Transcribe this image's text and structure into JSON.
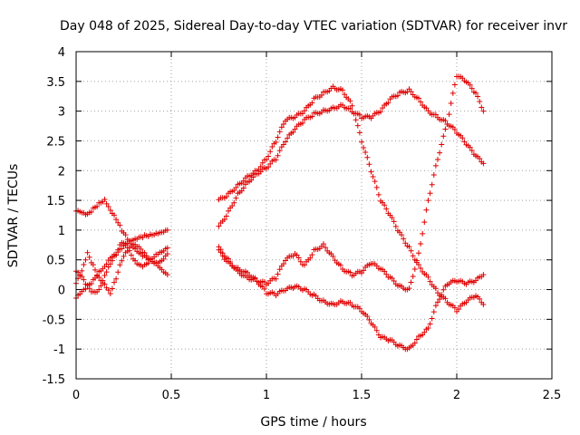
{
  "chart_data": {
    "type": "scatter",
    "title": "Day 048 of 2025, Sidereal Day-to-day VTEC variation (SDTVAR) for receiver invr",
    "xlabel": "GPS time / hours",
    "ylabel": "SDTVAR / TECUs",
    "xlim": [
      0,
      2.5
    ],
    "ylim": [
      -1.5,
      4
    ],
    "xticks": [
      0,
      0.5,
      1,
      1.5,
      2,
      2.5
    ],
    "xtick_labels": [
      "0",
      "0.5",
      "1",
      "1.5",
      "2",
      "2.5"
    ],
    "yticks": [
      -1.5,
      -1,
      -0.5,
      0,
      0.5,
      1,
      1.5,
      2,
      2.5,
      3,
      3.5,
      4
    ],
    "ytick_labels": [
      "-1.5",
      "-1",
      "-0.5",
      "0",
      "0.5",
      "1",
      "1.5",
      "2",
      "2.5",
      "3",
      "3.5",
      "4"
    ],
    "grid": true,
    "marker": "+",
    "color": "#e00000",
    "series": [
      {
        "name": "s1",
        "x": [
          0,
          0.03,
          0.06,
          0.09,
          0.12,
          0.15,
          0.18,
          0.21,
          0.24,
          0.27,
          0.3,
          0.33,
          0.36,
          0.39,
          0.42,
          0.45,
          0.48
        ],
        "y": [
          1.32,
          1.28,
          1.25,
          1.35,
          1.45,
          1.52,
          1.35,
          1.2,
          1.0,
          0.85,
          0.7,
          0.6,
          0.55,
          0.5,
          0.45,
          0.35,
          0.25
        ]
      },
      {
        "name": "s2",
        "x": [
          0,
          0.03,
          0.06,
          0.09,
          0.12,
          0.15,
          0.18,
          0.21,
          0.24,
          0.27,
          0.3,
          0.33,
          0.36,
          0.39,
          0.42,
          0.45,
          0.48
        ],
        "y": [
          0.1,
          0.3,
          0.6,
          0.4,
          0.2,
          0.1,
          -0.05,
          0.2,
          0.5,
          0.65,
          0.75,
          0.7,
          0.6,
          0.5,
          0.45,
          0.5,
          0.6
        ]
      },
      {
        "name": "s3",
        "x": [
          0,
          0.03,
          0.06,
          0.09,
          0.12,
          0.15,
          0.18,
          0.21,
          0.24,
          0.27,
          0.3,
          0.33,
          0.36,
          0.39,
          0.42,
          0.45,
          0.48
        ],
        "y": [
          -0.15,
          -0.05,
          0.05,
          0.15,
          0.3,
          0.4,
          0.55,
          0.6,
          0.7,
          0.78,
          0.82,
          0.86,
          0.9,
          0.92,
          0.95,
          0.98,
          1.0
        ]
      },
      {
        "name": "s4",
        "x": [
          0,
          0.03,
          0.06,
          0.09,
          0.12,
          0.15,
          0.18,
          0.21,
          0.24,
          0.27,
          0.3,
          0.33,
          0.36,
          0.39,
          0.42,
          0.45,
          0.48
        ],
        "y": [
          0.3,
          0.2,
          0.05,
          -0.05,
          0.0,
          0.25,
          0.45,
          0.6,
          0.8,
          0.7,
          0.5,
          0.4,
          0.4,
          0.5,
          0.6,
          0.65,
          0.7
        ]
      },
      {
        "name": "s5",
        "x": [
          0.75,
          0.8,
          0.85,
          0.9,
          0.95,
          1.0,
          1.05,
          1.1,
          1.15,
          1.2,
          1.25,
          1.3,
          1.35,
          1.4,
          1.45,
          1.5,
          1.55,
          1.6,
          1.65,
          1.7,
          1.75,
          1.8,
          1.85,
          1.9,
          1.95,
          2.0,
          2.05,
          2.1,
          2.14
        ],
        "y": [
          1.5,
          1.6,
          1.75,
          1.9,
          2.0,
          2.2,
          2.5,
          2.85,
          2.9,
          3.0,
          3.2,
          3.3,
          3.4,
          3.35,
          3.1,
          2.5,
          2.0,
          1.5,
          1.25,
          0.95,
          0.7,
          0.4,
          0.2,
          -0.05,
          -0.2,
          -0.35,
          -0.2,
          -0.1,
          -0.25
        ]
      },
      {
        "name": "s6",
        "x": [
          0.75,
          0.8,
          0.85,
          0.9,
          0.95,
          1.0,
          1.05,
          1.1,
          1.15,
          1.2,
          1.25,
          1.3,
          1.35,
          1.4,
          1.45,
          1.5,
          1.55,
          1.6,
          1.65,
          1.7,
          1.75,
          1.8,
          1.85,
          1.9,
          1.95,
          2.0,
          2.05,
          2.1,
          2.14
        ],
        "y": [
          1.05,
          1.3,
          1.6,
          1.8,
          1.95,
          2.05,
          2.2,
          2.5,
          2.7,
          2.85,
          2.95,
          3.0,
          3.05,
          3.1,
          3.0,
          2.9,
          2.9,
          3.0,
          3.2,
          3.3,
          3.35,
          3.2,
          3.0,
          2.9,
          2.8,
          2.65,
          2.45,
          2.25,
          2.12
        ]
      },
      {
        "name": "s7",
        "x": [
          0.75,
          0.8,
          0.85,
          0.9,
          0.95,
          1.0,
          1.05,
          1.1,
          1.15,
          1.2,
          1.25,
          1.3,
          1.35,
          1.4,
          1.45,
          1.5,
          1.55,
          1.6,
          1.65,
          1.7,
          1.75,
          1.8,
          1.85,
          1.9,
          1.95,
          2.0,
          2.05,
          2.1,
          2.14
        ],
        "y": [
          0.65,
          0.45,
          0.35,
          0.28,
          0.15,
          -0.05,
          -0.08,
          0.0,
          0.05,
          0.0,
          -0.1,
          -0.2,
          -0.25,
          -0.2,
          -0.25,
          -0.35,
          -0.55,
          -0.8,
          -0.85,
          -0.95,
          -1.0,
          -0.8,
          -0.65,
          -0.2,
          0.1,
          0.15,
          0.1,
          0.15,
          0.25
        ]
      },
      {
        "name": "s8",
        "x": [
          0.75,
          0.8,
          0.85,
          0.9,
          0.95,
          1.0,
          1.05,
          1.1,
          1.15,
          1.2,
          1.25,
          1.3,
          1.35,
          1.4,
          1.45,
          1.5,
          1.55,
          1.6,
          1.65,
          1.7,
          1.75,
          1.8,
          1.85,
          1.9,
          1.95,
          2.0,
          2.05,
          2.1,
          2.14
        ],
        "y": [
          0.7,
          0.5,
          0.3,
          0.2,
          0.15,
          0.1,
          0.2,
          0.5,
          0.6,
          0.4,
          0.65,
          0.75,
          0.55,
          0.35,
          0.25,
          0.3,
          0.45,
          0.35,
          0.2,
          0.05,
          0.0,
          0.6,
          1.5,
          2.2,
          2.8,
          3.6,
          3.5,
          3.3,
          3.0
        ]
      }
    ]
  }
}
